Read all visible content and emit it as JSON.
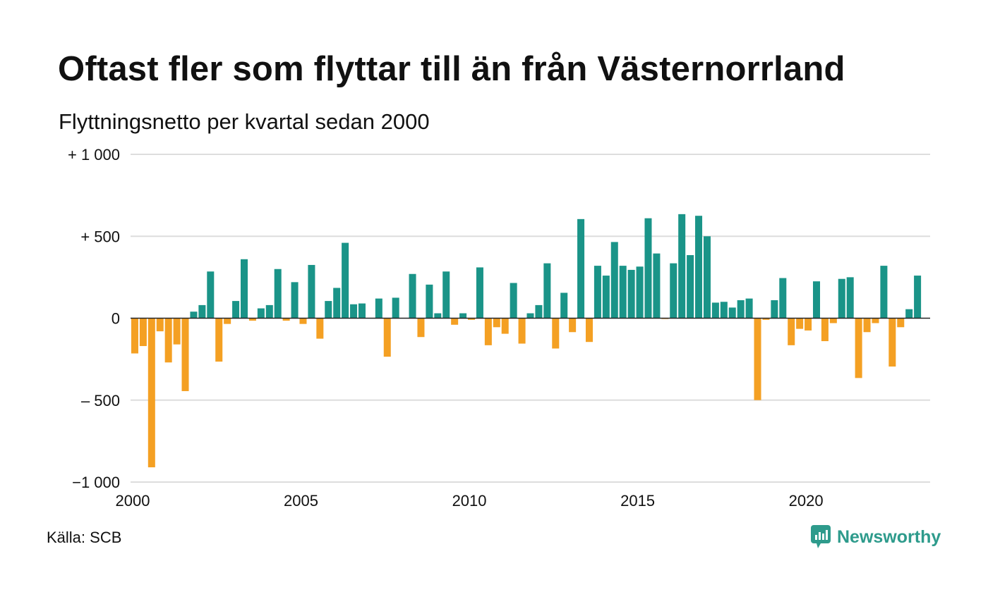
{
  "title": "Oftast fler som flyttar till än från Västernorrland",
  "subtitle": "Flyttningsnetto per kvartal sedan 2000",
  "source": "Källa: SCB",
  "brand": "Newsworthy",
  "colors": {
    "positive": "#1a9488",
    "negative": "#f4a023",
    "grid": "#dddddd",
    "zero_line": "#222222",
    "brand": "#2e9b8c"
  },
  "chart_data": {
    "type": "bar",
    "grid": true,
    "ylim": [
      -1000,
      1000
    ],
    "xlim": [
      2000,
      2023.75
    ],
    "y_ticks": [
      {
        "value": 1000,
        "label": "+ 1 000"
      },
      {
        "value": 500,
        "label": "+   500"
      },
      {
        "value": 0,
        "label": "0"
      },
      {
        "value": -500,
        "label": "–  500"
      },
      {
        "value": -1000,
        "label": "−1 000"
      }
    ],
    "x_ticks": [
      {
        "value": 2000,
        "label": "2000"
      },
      {
        "value": 2005,
        "label": "2005"
      },
      {
        "value": 2010,
        "label": "2010"
      },
      {
        "value": 2015,
        "label": "2015"
      },
      {
        "value": 2020,
        "label": "2020"
      }
    ],
    "series": [
      {
        "start_year": 2000,
        "start_quarter": 1,
        "values": [
          -215,
          -170,
          -910,
          -80,
          -270,
          -160,
          -445,
          40,
          80,
          285,
          -265,
          -35,
          105,
          360,
          -15,
          60,
          80,
          300,
          -15,
          220,
          -35,
          325,
          -125,
          105,
          185,
          460,
          85,
          90,
          0,
          120,
          -235,
          125,
          0,
          270,
          -115,
          205,
          30,
          285,
          -40,
          30,
          -10,
          310,
          -165,
          -55,
          -95,
          215,
          -155,
          30,
          80,
          335,
          -185,
          155,
          -85,
          605,
          -145,
          320,
          260,
          465,
          320,
          295,
          315,
          610,
          395,
          -5,
          335,
          635,
          385,
          625,
          500,
          95,
          100,
          65,
          110,
          120,
          -500,
          -10,
          110,
          245,
          -165,
          -65,
          -75,
          225,
          -140,
          -30,
          240,
          250,
          -365,
          -85,
          -30,
          320,
          -295,
          -55,
          55,
          260
        ]
      }
    ]
  }
}
